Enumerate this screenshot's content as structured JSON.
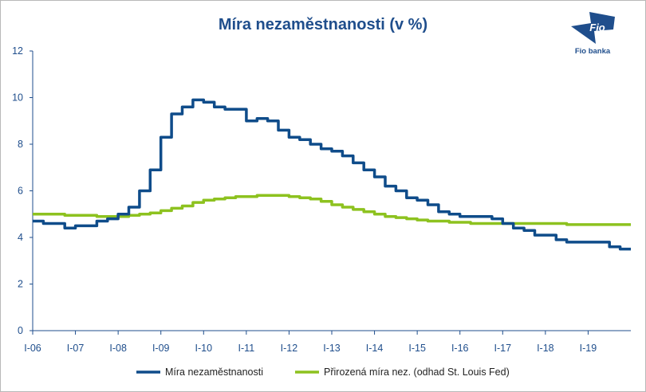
{
  "colors": {
    "axis": "#1f4e8c",
    "title": "#1f4e8c",
    "series_unemployment": "#0f4c8a",
    "series_natural": "#8dc21f"
  },
  "logo": {
    "mark_text": "Fio",
    "caption": "Fio banka"
  },
  "chart_data": {
    "type": "line",
    "title": "Míra nezaměstnanosti (v %)",
    "xlabel": "",
    "ylabel": "",
    "ylim": [
      0,
      12
    ],
    "y_ticks": [
      0,
      2,
      4,
      6,
      8,
      10,
      12
    ],
    "x_range": [
      "2006-01",
      "2019-12"
    ],
    "x_tick_labels": [
      "I-06",
      "I-07",
      "I-08",
      "I-09",
      "I-10",
      "I-11",
      "I-12",
      "I-13",
      "I-14",
      "I-15",
      "I-16",
      "I-17",
      "I-18",
      "I-19"
    ],
    "grid": false,
    "legend_position": "bottom",
    "series": [
      {
        "name": "Míra nezaměstnanosti",
        "step": "quarterly",
        "x": [
          "2006-01",
          "2006-04",
          "2006-07",
          "2006-10",
          "2007-01",
          "2007-04",
          "2007-07",
          "2007-10",
          "2008-01",
          "2008-04",
          "2008-07",
          "2008-10",
          "2009-01",
          "2009-04",
          "2009-07",
          "2009-10",
          "2010-01",
          "2010-04",
          "2010-07",
          "2010-10",
          "2011-01",
          "2011-04",
          "2011-07",
          "2011-10",
          "2012-01",
          "2012-04",
          "2012-07",
          "2012-10",
          "2013-01",
          "2013-04",
          "2013-07",
          "2013-10",
          "2014-01",
          "2014-04",
          "2014-07",
          "2014-10",
          "2015-01",
          "2015-04",
          "2015-07",
          "2015-10",
          "2016-01",
          "2016-04",
          "2016-07",
          "2016-10",
          "2017-01",
          "2017-04",
          "2017-07",
          "2017-10",
          "2018-01",
          "2018-04",
          "2018-07",
          "2018-10",
          "2019-01",
          "2019-04",
          "2019-07",
          "2019-10"
        ],
        "values": [
          4.7,
          4.6,
          4.6,
          4.4,
          4.5,
          4.5,
          4.7,
          4.8,
          5.0,
          5.3,
          6.0,
          6.9,
          8.3,
          9.3,
          9.6,
          9.9,
          9.8,
          9.6,
          9.5,
          9.5,
          9.0,
          9.1,
          9.0,
          8.6,
          8.3,
          8.2,
          8.0,
          7.8,
          7.7,
          7.5,
          7.2,
          6.9,
          6.6,
          6.2,
          6.0,
          5.7,
          5.6,
          5.4,
          5.1,
          5.0,
          4.9,
          4.9,
          4.9,
          4.8,
          4.6,
          4.4,
          4.3,
          4.1,
          4.1,
          3.9,
          3.8,
          3.8,
          3.8,
          3.8,
          3.6,
          3.5
        ]
      },
      {
        "name": "Přirozená míra nez. (odhad St. Louis Fed)",
        "step": "quarterly",
        "x": [
          "2006-01",
          "2006-04",
          "2006-07",
          "2006-10",
          "2007-01",
          "2007-04",
          "2007-07",
          "2007-10",
          "2008-01",
          "2008-04",
          "2008-07",
          "2008-10",
          "2009-01",
          "2009-04",
          "2009-07",
          "2009-10",
          "2010-01",
          "2010-04",
          "2010-07",
          "2010-10",
          "2011-01",
          "2011-04",
          "2011-07",
          "2011-10",
          "2012-01",
          "2012-04",
          "2012-07",
          "2012-10",
          "2013-01",
          "2013-04",
          "2013-07",
          "2013-10",
          "2014-01",
          "2014-04",
          "2014-07",
          "2014-10",
          "2015-01",
          "2015-04",
          "2015-07",
          "2015-10",
          "2016-01",
          "2016-04",
          "2016-07",
          "2016-10",
          "2017-01",
          "2017-04",
          "2017-07",
          "2017-10",
          "2018-01",
          "2018-04",
          "2018-07",
          "2018-10",
          "2019-01",
          "2019-04",
          "2019-07",
          "2019-10"
        ],
        "values": [
          5.0,
          5.0,
          5.0,
          4.95,
          4.95,
          4.95,
          4.9,
          4.9,
          4.9,
          4.95,
          5.0,
          5.05,
          5.15,
          5.25,
          5.35,
          5.5,
          5.6,
          5.65,
          5.7,
          5.75,
          5.75,
          5.8,
          5.8,
          5.8,
          5.75,
          5.7,
          5.65,
          5.55,
          5.4,
          5.3,
          5.2,
          5.1,
          5.0,
          4.9,
          4.85,
          4.8,
          4.75,
          4.7,
          4.7,
          4.65,
          4.65,
          4.6,
          4.6,
          4.6,
          4.6,
          4.6,
          4.6,
          4.6,
          4.6,
          4.6,
          4.55,
          4.55,
          4.55,
          4.55,
          4.55,
          4.55
        ]
      }
    ]
  }
}
